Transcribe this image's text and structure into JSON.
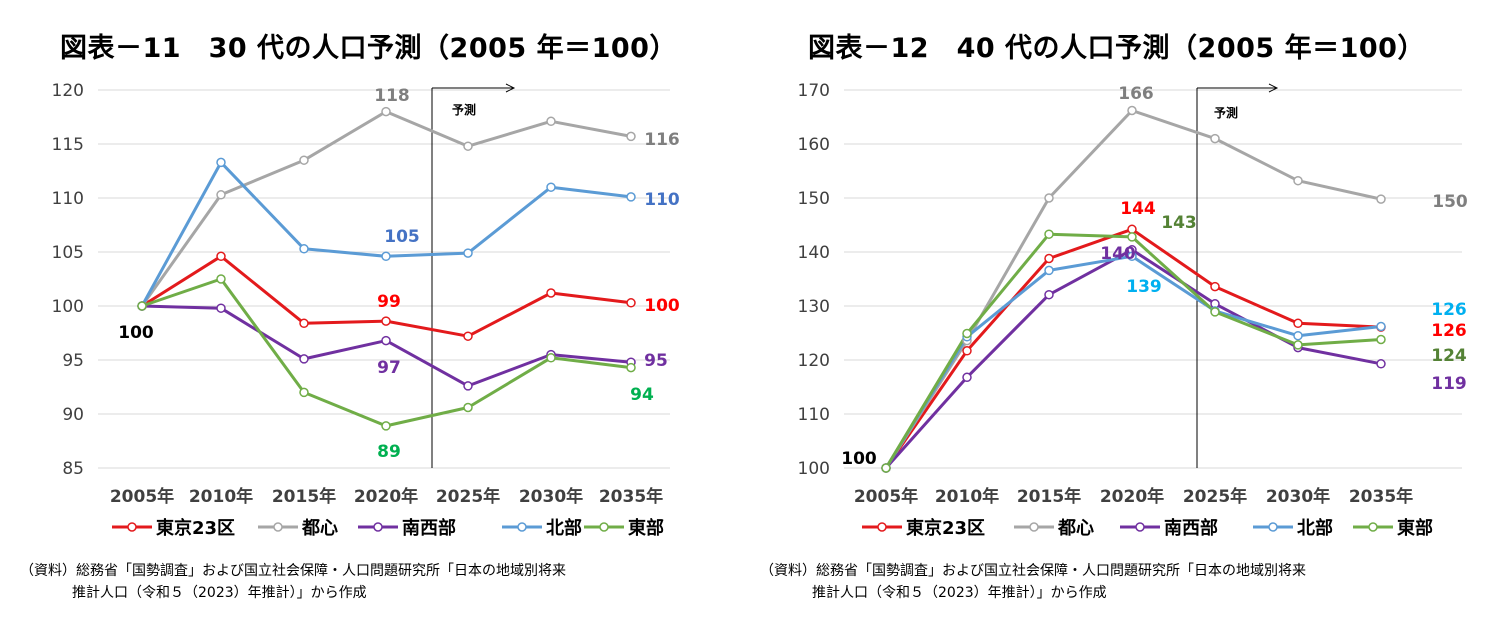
{
  "chart_data": [
    {
      "type": "line",
      "title": "図表－11　30 代の人口予測（2005 年＝100）",
      "categories": [
        "2005年",
        "2010年",
        "2015年",
        "2020年",
        "2025年",
        "2030年",
        "2035年"
      ],
      "ylim": [
        85,
        120
      ],
      "yticks": [
        85,
        90,
        95,
        100,
        105,
        110,
        115,
        120
      ],
      "forecast_label": "予測",
      "series": [
        {
          "name": "東京23区",
          "color": "#e31a1c",
          "values": [
            100,
            104.6,
            98.4,
            98.6,
            97.2,
            101.2,
            100.3
          ]
        },
        {
          "name": "都心",
          "color": "#a6a6a6",
          "values": [
            100,
            110.3,
            113.5,
            118.0,
            114.8,
            117.1,
            115.7
          ]
        },
        {
          "name": "南西部",
          "color": "#7030a0",
          "values": [
            100,
            99.8,
            95.1,
            96.8,
            92.6,
            95.5,
            94.8
          ]
        },
        {
          "name": "北部",
          "color": "#5b9bd5",
          "values": [
            100,
            113.3,
            105.3,
            104.6,
            104.9,
            111.0,
            110.1
          ]
        },
        {
          "name": "東部",
          "color": "#70ad47",
          "values": [
            100,
            102.5,
            92.0,
            88.9,
            90.6,
            95.2,
            94.3
          ]
        }
      ],
      "annotations": [
        {
          "text": "100",
          "color": "#000000"
        },
        {
          "text": "118",
          "color": "#7f7f7f"
        },
        {
          "text": "116",
          "color": "#7f7f7f"
        },
        {
          "text": "105",
          "color": "#4472c4"
        },
        {
          "text": "110",
          "color": "#4472c4"
        },
        {
          "text": "99",
          "color": "#ff0000"
        },
        {
          "text": "100",
          "color": "#ff0000"
        },
        {
          "text": "97",
          "color": "#7030a0"
        },
        {
          "text": "95",
          "color": "#7030a0"
        },
        {
          "text": "89",
          "color": "#00b050"
        },
        {
          "text": "94",
          "color": "#00b050"
        }
      ],
      "source_line1": "（資料）総務省「国勢調査」および国立社会保障・人口問題研究所「日本の地域別将来",
      "source_line2": "推計人口（令和５（2023）年推計）」から作成"
    },
    {
      "type": "line",
      "title": "図表－12　40 代の人口予測（2005 年＝100）",
      "categories": [
        "2005年",
        "2010年",
        "2015年",
        "2020年",
        "2025年",
        "2030年",
        "2035年"
      ],
      "ylim": [
        100,
        170
      ],
      "yticks": [
        100,
        110,
        120,
        130,
        140,
        150,
        160,
        170
      ],
      "forecast_label": "予測",
      "series": [
        {
          "name": "東京23区",
          "color": "#e31a1c",
          "values": [
            100,
            121.7,
            138.8,
            144.2,
            133.6,
            126.8,
            126.1
          ]
        },
        {
          "name": "都心",
          "color": "#a6a6a6",
          "values": [
            100,
            123.6,
            150.0,
            166.2,
            161.0,
            153.2,
            149.8
          ]
        },
        {
          "name": "南西部",
          "color": "#7030a0",
          "values": [
            100,
            116.8,
            132.1,
            140.4,
            130.4,
            122.3,
            119.3
          ]
        },
        {
          "name": "北部",
          "color": "#5b9bd5",
          "values": [
            100,
            124.3,
            136.6,
            139.2,
            129.1,
            124.5,
            126.2
          ]
        },
        {
          "name": "東部",
          "color": "#70ad47",
          "values": [
            100,
            124.9,
            143.3,
            142.8,
            128.9,
            122.8,
            123.8
          ]
        }
      ],
      "annotations": [
        {
          "text": "100",
          "color": "#000000"
        },
        {
          "text": "166",
          "color": "#7f7f7f"
        },
        {
          "text": "150",
          "color": "#7f7f7f"
        },
        {
          "text": "144",
          "color": "#ff0000"
        },
        {
          "text": "143",
          "color": "#548235"
        },
        {
          "text": "140",
          "color": "#7030a0"
        },
        {
          "text": "139",
          "color": "#00b0f0"
        },
        {
          "text": "126",
          "color": "#00b0f0"
        },
        {
          "text": "126",
          "color": "#ff0000"
        },
        {
          "text": "124",
          "color": "#548235"
        },
        {
          "text": "119",
          "color": "#7030a0"
        }
      ],
      "source_line1": "（資料）総務省「国勢調査」および国立社会保障・人口問題研究所「日本の地域別将来",
      "source_line2": "推計人口（令和５（2023）年推計）」から作成"
    }
  ]
}
